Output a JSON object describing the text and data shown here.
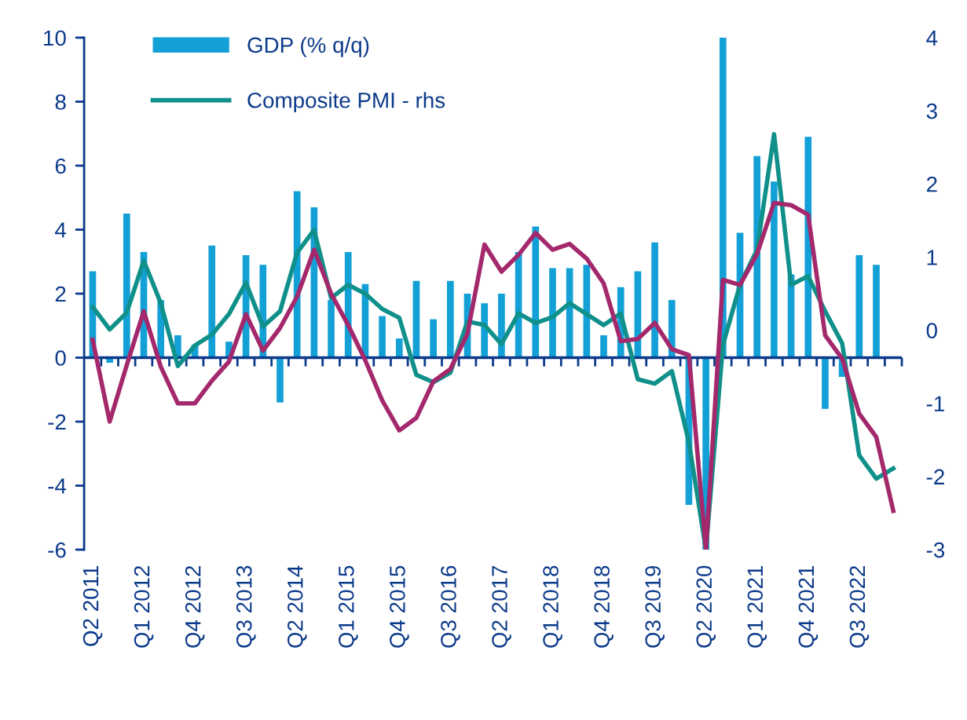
{
  "chart_data": {
    "type": "bar",
    "categories": [
      "Q2 2011",
      null,
      null,
      "Q1 2012",
      null,
      null,
      "Q4 2012",
      null,
      null,
      "Q3 2013",
      null,
      null,
      "Q2 2014",
      null,
      null,
      "Q1 2015",
      null,
      null,
      "Q4 2015",
      null,
      null,
      "Q3 2016",
      null,
      null,
      "Q2 2017",
      null,
      null,
      "Q1 2018",
      null,
      null,
      "Q4 2018",
      null,
      null,
      "Q3 2019",
      null,
      null,
      "Q2 2020",
      null,
      null,
      "Q1 2021",
      null,
      null,
      "Q4 2021",
      null,
      null,
      "Q3 2022",
      null,
      null
    ],
    "series": [
      {
        "name": "GDP (% q/q)",
        "color": "#13a0d6",
        "values": [
          2.7,
          -0.16,
          4.5,
          3.3,
          1.8,
          0.7,
          0.4,
          3.5,
          0.5,
          3.2,
          2.9,
          -1.4,
          5.2,
          4.7,
          1.8,
          3.3,
          2.3,
          1.3,
          0.6,
          2.4,
          1.2,
          2.4,
          2.0,
          1.7,
          2.0,
          3.3,
          4.1,
          2.8,
          2.8,
          2.9,
          0.7,
          2.2,
          2.7,
          3.6,
          1.8,
          -4.6,
          -6,
          10,
          3.9,
          6.3,
          5.5,
          2.6,
          6.9,
          -1.6,
          -0.6,
          3.2,
          2.9,
          null
        ]
      },
      {
        "name": "Composite PMI - rhs",
        "type": "line",
        "axis": "y2",
        "color": "#10908a",
        "values": [
          0.32,
          0.01,
          0.24,
          0.95,
          0.37,
          -0.49,
          -0.21,
          -0.06,
          0.22,
          0.65,
          0.05,
          0.26,
          1.06,
          1.37,
          0.44,
          0.62,
          0.5,
          0.29,
          0.17,
          -0.61,
          -0.71,
          -0.58,
          0.12,
          0.07,
          -0.19,
          0.23,
          0.1,
          0.18,
          0.37,
          0.22,
          0.07,
          0.23,
          -0.67,
          -0.73,
          -0.56,
          -1.53,
          -3,
          -0.2,
          0.62,
          1.1,
          2.68,
          0.62,
          0.74,
          0.26,
          -0.18,
          -1.71,
          -2.03,
          -1.89
        ]
      },
      {
        "type": "line",
        "axis": "y2",
        "color": "#a3286c",
        "values": [
          -0.13,
          -1.25,
          -0.48,
          0.26,
          -0.5,
          -1.0,
          -1.0,
          -0.69,
          -0.43,
          0.22,
          -0.28,
          0.03,
          0.46,
          1.1,
          0.5,
          0.07,
          -0.41,
          -0.96,
          -1.37,
          -1.2,
          -0.7,
          -0.53,
          -0.05,
          1.17,
          0.8,
          1.03,
          1.33,
          1.1,
          1.18,
          0.98,
          0.64,
          -0.15,
          -0.12,
          0.1,
          -0.26,
          -0.34,
          -3,
          0.69,
          0.62,
          1.04,
          1.74,
          1.71,
          1.58,
          -0.07,
          -0.39,
          -1.14,
          -1.46,
          -2.47
        ]
      }
    ],
    "ylim": [
      -6,
      10
    ],
    "yticks": [
      -6,
      -4,
      -2,
      0,
      2,
      4,
      6,
      8,
      10
    ],
    "y2lim": [
      -3,
      4
    ],
    "y2ticks": [
      -3,
      -2,
      -1,
      0,
      1,
      2,
      3,
      4
    ],
    "ref_lines": [
      {
        "axis": "y",
        "value": 0,
        "color": "#0b3a8a",
        "line_style": "solid"
      }
    ],
    "grid": false,
    "legend": "top left",
    "marker": "none",
    "line_style": "solid"
  }
}
